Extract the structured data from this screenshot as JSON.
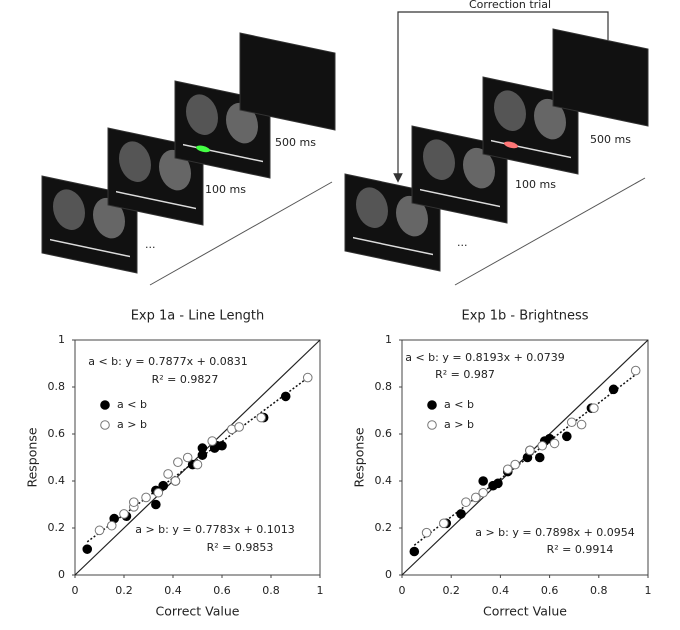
{
  "diagram": {
    "correction_label": "Correction trial",
    "left": {
      "ellipsis": "...",
      "t1": "100 ms",
      "t2": "500 ms"
    },
    "right": {
      "ellipsis": "...",
      "t1": "100 ms",
      "t2": "500 ms"
    }
  },
  "chart_data": [
    {
      "type": "scatter",
      "title": "Exp 1a - Line Length",
      "xlabel": "Correct Value",
      "ylabel": "Response",
      "xlim": [
        0,
        1
      ],
      "ylim": [
        0,
        1
      ],
      "xticks": [
        0,
        0.2,
        0.4,
        0.6,
        0.8,
        1
      ],
      "yticks": [
        0,
        0.2,
        0.4,
        0.6,
        0.8,
        1
      ],
      "series": [
        {
          "name": "a < b",
          "color": "#000000",
          "filled": true,
          "fit": "a < b: y = 0.7877x + 0.0831",
          "r2": "R² = 0.9827",
          "x": [
            0.05,
            0.16,
            0.21,
            0.33,
            0.33,
            0.36,
            0.41,
            0.48,
            0.52,
            0.52,
            0.57,
            0.58,
            0.6,
            0.77,
            0.86
          ],
          "values": [
            0.11,
            0.24,
            0.25,
            0.3,
            0.36,
            0.38,
            0.4,
            0.47,
            0.51,
            0.54,
            0.54,
            0.55,
            0.55,
            0.67,
            0.76
          ]
        },
        {
          "name": "a > b",
          "color": "#777777",
          "filled": false,
          "fit": "a > b: y = 0.7783x + 0.1013",
          "r2": "R² = 0.9853",
          "x": [
            0.1,
            0.15,
            0.2,
            0.24,
            0.24,
            0.29,
            0.34,
            0.38,
            0.41,
            0.42,
            0.46,
            0.5,
            0.56,
            0.64,
            0.67,
            0.76,
            0.95
          ],
          "values": [
            0.19,
            0.21,
            0.26,
            0.29,
            0.31,
            0.33,
            0.35,
            0.43,
            0.4,
            0.48,
            0.5,
            0.47,
            0.57,
            0.62,
            0.63,
            0.67,
            0.84
          ]
        }
      ]
    },
    {
      "type": "scatter",
      "title": "Exp 1b - Brightness",
      "xlabel": "Correct Value",
      "ylabel": "Response",
      "xlim": [
        0,
        1
      ],
      "ylim": [
        0,
        1
      ],
      "xticks": [
        0,
        0.2,
        0.4,
        0.6,
        0.8,
        1
      ],
      "yticks": [
        0,
        0.2,
        0.4,
        0.6,
        0.8,
        1
      ],
      "series": [
        {
          "name": "a < b",
          "color": "#000000",
          "filled": true,
          "fit": "a < b: y = 0.8193x + 0.0739",
          "r2": "R² = 0.987",
          "x": [
            0.05,
            0.18,
            0.24,
            0.33,
            0.37,
            0.39,
            0.43,
            0.51,
            0.52,
            0.56,
            0.58,
            0.6,
            0.67,
            0.77,
            0.86
          ],
          "values": [
            0.1,
            0.22,
            0.26,
            0.4,
            0.38,
            0.39,
            0.44,
            0.5,
            0.53,
            0.5,
            0.57,
            0.58,
            0.59,
            0.71,
            0.79
          ]
        },
        {
          "name": "a > b",
          "color": "#777777",
          "filled": false,
          "fit": "a > b: y = 0.7898x + 0.0954",
          "r2": "R² = 0.9914",
          "x": [
            0.1,
            0.17,
            0.26,
            0.3,
            0.33,
            0.43,
            0.46,
            0.52,
            0.57,
            0.62,
            0.69,
            0.73,
            0.78,
            0.95
          ],
          "values": [
            0.18,
            0.22,
            0.31,
            0.33,
            0.35,
            0.45,
            0.47,
            0.53,
            0.55,
            0.56,
            0.65,
            0.64,
            0.71,
            0.87
          ]
        }
      ]
    }
  ]
}
